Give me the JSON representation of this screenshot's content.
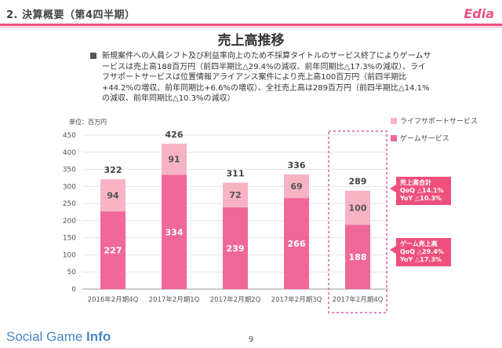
{
  "header": {
    "title": "2. 決算概要（第4四半期）",
    "logo": "Edia"
  },
  "slide_title": "売上高推移",
  "bullet": "新規案件への人員シフト及び利益率向上のため不採算タイトルのサービス終了によりゲームサービスは売上高188百万円（前四半期比△29.4%の減収、前年同期比△17.3%の減収）、ライフサポートサービスは位置情報アライアンス案件により売上高100百万円（前四半期比+44.2%の増収、前年同期比+6.6%の増収）、全社売上高は289百万円（前四半期比△14.1%の減収、前年同期比△10.3%の減収）",
  "unit_label": "単位：百万円",
  "callouts": {
    "total": {
      "title": "売上高合計",
      "qoq": "QoQ △14.1%",
      "yoy": "YoY △10.3%"
    },
    "game": {
      "title": "ゲーム売上高",
      "qoq": "QoQ △29.4%",
      "yoy": "YoY △17.3%"
    }
  },
  "colors": {
    "game": "#f0679a",
    "life": "#f7b3c4",
    "accent": "#ef4f7d",
    "highlight_border": "#e05aa8"
  },
  "footer": {
    "brand_light": "Social Game ",
    "brand_bold": "Info",
    "page": "9"
  },
  "chart_data": {
    "type": "bar",
    "stacked": true,
    "categories": [
      "2016年2月期4Q",
      "2017年2月期1Q",
      "2017年2月期2Q",
      "2017年2月期3Q",
      "2017年2月期4Q"
    ],
    "series": [
      {
        "name": "ゲームサービス",
        "values": [
          227,
          334,
          239,
          266,
          188
        ]
      },
      {
        "name": "ライフサポートサービス",
        "values": [
          94,
          91,
          72,
          69,
          100
        ]
      }
    ],
    "totals": [
      322,
      426,
      311,
      336,
      289
    ],
    "ylim": [
      0,
      450
    ],
    "yticks": [
      0,
      50,
      100,
      150,
      200,
      250,
      300,
      350,
      400,
      450
    ],
    "grid": true,
    "legend": "top-right",
    "highlighted_category": "2017年2月期4Q"
  }
}
